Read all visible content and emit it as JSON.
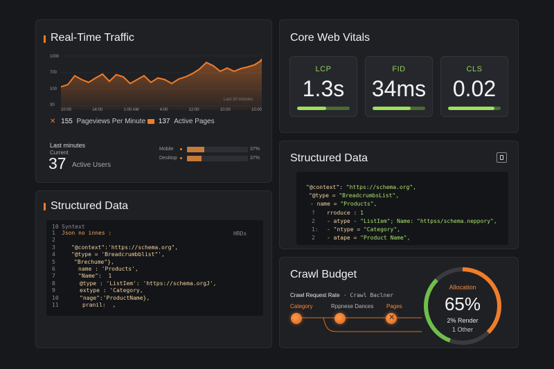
{
  "traffic": {
    "title": "Real-Time Traffic",
    "y_ticks": [
      "1000",
      "700",
      "100",
      "30"
    ],
    "x_ticks": [
      "10:00",
      "14:00",
      "1:00 AM",
      "4:00",
      "12:00",
      "10:00",
      "10:00"
    ],
    "range_label": "Last 30 minutes",
    "pageviews_value": "155",
    "pageviews_label": "Pageviews Per Minute",
    "active_pages_value": "137",
    "active_pages_label": "Active Pages",
    "last_label": "Last minutes",
    "current_label": "Current",
    "active_users_value": "37",
    "active_users_label": "Active Users",
    "devices": [
      {
        "name": "Mobile",
        "pct_label": "37%",
        "fill": 0.28
      },
      {
        "name": "Desktop",
        "pct_label": "37%",
        "fill": 0.24
      }
    ],
    "colors": {
      "accent": "#f07d2a"
    }
  },
  "chart_data": {
    "type": "area",
    "title": "Real-Time Traffic",
    "xlabel": "",
    "ylabel": "",
    "y": [
      42,
      46,
      62,
      55,
      50,
      58,
      65,
      52,
      64,
      60,
      48,
      55,
      62,
      50,
      58,
      55,
      48,
      56,
      60,
      66,
      74,
      86,
      80,
      70,
      76,
      70,
      75,
      78,
      82,
      90
    ],
    "ylim": [
      0,
      100
    ],
    "grid": true
  },
  "structured_left": {
    "title": "Structured Data",
    "header_ln": "10",
    "header_text": "Syntext",
    "header_right": "HRDs",
    "lines": [
      {
        "n": "1",
        "text": "Json no innes :"
      },
      {
        "n": "2",
        "text": ""
      },
      {
        "n": "3",
        "text": "\"@context\":'https://schema.org\","
      },
      {
        "n": "4",
        "text": "\"@type = 'Breadcrumbblist\"',"
      },
      {
        "n": "5",
        "text": "\"Brechume\"},"
      },
      {
        "n": "6",
        "text": "name : 'Products',"
      },
      {
        "n": "7",
        "text": "\"Name\":  1"
      },
      {
        "n": "8",
        "text": "@type : 'ListIem': 'https://schema.orgJ',"
      },
      {
        "n": "9",
        "text": "extype : 'Category,"
      },
      {
        "n": "10",
        "text": "\"nage\":'ProductName},"
      },
      {
        "n": "11",
        "text": "pranil:  ,"
      }
    ]
  },
  "vitals": {
    "title": "Core Web Vitals",
    "items": [
      {
        "label": "LCP",
        "value": "1.3s",
        "fill": 0.55
      },
      {
        "label": "FID",
        "value": "34ms",
        "fill": 0.72
      },
      {
        "label": "CLS",
        "value": "0.02",
        "fill": 0.88
      }
    ]
  },
  "structured_right": {
    "title": "Structured Data",
    "lines": [
      {
        "n": "",
        "k": "\"@context\":",
        "v": "\"https://schema.org\","
      },
      {
        "n": "",
        "k": "\"@type =",
        "v": "\"BreadcrumbsList\","
      },
      {
        "n": "",
        "k": "- name =",
        "v": "\"Products\","
      },
      {
        "n": "?",
        "k": "rroduce :",
        "v": "1"
      },
      {
        "n": "2",
        "k": "- atype -",
        "v": "\"ListIem\"; Name: \"httpss/schema.neppory\","
      },
      {
        "n": "1:",
        "k": "- \"ntype =",
        "v": "\"Category\","
      },
      {
        "n": "2",
        "k": "- atape =",
        "v": "\"Product Name\","
      }
    ]
  },
  "crawl": {
    "title": "Crawl Budget",
    "rate_label": "Crawl Request Rate",
    "rate_suffix": "· Crawl Baclner",
    "steps": [
      "Category",
      "Rppnese Dances",
      "Pages"
    ],
    "allocation_label": "Allocation",
    "allocation_value": "65%",
    "allocation_fill": 0.65,
    "render_label": "2% Render",
    "other_label": "1 Other"
  }
}
